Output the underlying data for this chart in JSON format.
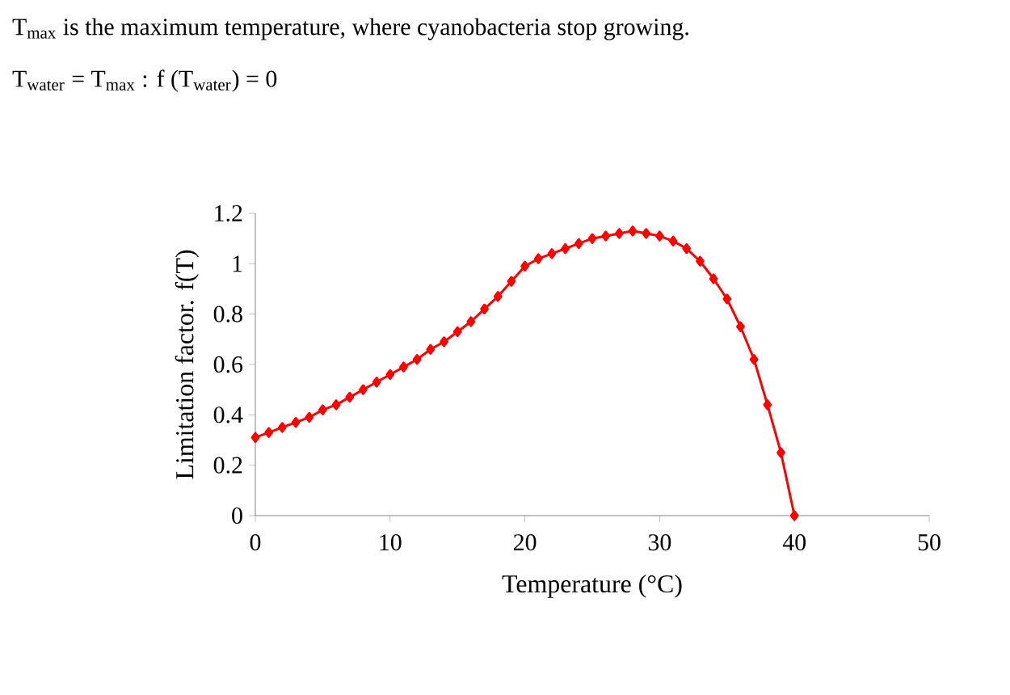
{
  "chart_data": {
    "type": "line",
    "annotations": [
      "T$_{max}$ is the maximum temperature, where cyanobacteria stop growing.",
      "T$_{water}$ = T$_{max}$ : f (T$_{water}$) = 0"
    ],
    "xlabel": "Temperature (°C)",
    "ylabel": "Limitation factor. f(T)",
    "x": [
      0,
      1,
      2,
      3,
      4,
      5,
      6,
      7,
      8,
      9,
      10,
      11,
      12,
      13,
      14,
      15,
      16,
      17,
      18,
      19,
      20,
      21,
      22,
      23,
      24,
      25,
      26,
      27,
      28,
      29,
      30,
      31,
      32,
      33,
      34,
      35,
      36,
      37,
      38,
      39,
      40
    ],
    "series": [
      {
        "color": "#ff0000",
        "values": [
          0.31,
          0.33,
          0.35,
          0.37,
          0.39,
          0.42,
          0.44,
          0.47,
          0.5,
          0.53,
          0.56,
          0.59,
          0.62,
          0.66,
          0.69,
          0.73,
          0.77,
          0.82,
          0.87,
          0.93,
          0.99,
          1.02,
          1.04,
          1.06,
          1.08,
          1.1,
          1.11,
          1.12,
          1.13,
          1.12,
          1.11,
          1.09,
          1.06,
          1.01,
          0.94,
          0.86,
          0.75,
          0.62,
          0.44,
          0.25,
          0
        ]
      }
    ],
    "xlim": [
      0,
      50
    ],
    "xticks": [
      0,
      10,
      20,
      30,
      40,
      50
    ],
    "ylim": [
      0,
      1.2
    ],
    "yticks": [
      0,
      0.2,
      0.4,
      0.6,
      0.8,
      1,
      1.2
    ],
    "marker": "diamond",
    "line_style": "solid",
    "grid": false
  }
}
